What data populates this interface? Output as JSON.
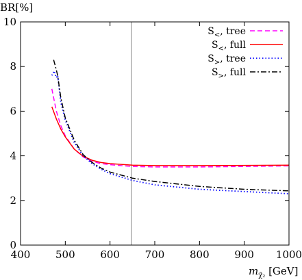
{
  "chart_data": {
    "type": "line",
    "title": "",
    "ylabel": "BR[%]",
    "xlabel": {
      "prefix": "m",
      "subscript": "χ̃₂",
      "suffix": " [GeV]"
    },
    "xlim": [
      400,
      1000
    ],
    "ylim": [
      0,
      10
    ],
    "xticks": [
      400,
      500,
      600,
      700,
      800,
      900,
      1000
    ],
    "yticks": [
      0,
      2,
      4,
      6,
      8,
      10
    ],
    "grid": false,
    "legend_position": "top-right",
    "reference_line": {
      "orientation": "vertical",
      "x": 648,
      "color": "#999999"
    },
    "series": [
      {
        "name": "S<, tree",
        "legend_main": "S",
        "legend_sub": "<",
        "legend_rest": ", tree",
        "color": "#ff00ff",
        "dash": "7,4",
        "x": [
          470,
          480,
          490,
          500,
          520,
          540,
          560,
          580,
          600,
          650,
          700,
          800,
          900,
          1000
        ],
        "y": [
          7.0,
          6.0,
          5.35,
          4.9,
          4.3,
          3.95,
          3.75,
          3.65,
          3.6,
          3.52,
          3.5,
          3.5,
          3.52,
          3.55
        ]
      },
      {
        "name": "S<, full",
        "legend_main": "S",
        "legend_sub": "<",
        "legend_rest": ", full",
        "color": "#ff0000",
        "dash": "",
        "x": [
          470,
          480,
          490,
          500,
          520,
          540,
          560,
          580,
          600,
          650,
          700,
          800,
          900,
          1000
        ],
        "y": [
          6.2,
          5.65,
          5.2,
          4.85,
          4.3,
          3.98,
          3.8,
          3.7,
          3.65,
          3.58,
          3.56,
          3.56,
          3.57,
          3.58
        ]
      },
      {
        "name": "S>, tree",
        "legend_main": "S",
        "legend_sub": ">",
        "legend_rest": ", tree",
        "color": "#0000ff",
        "dash": "1.5,3",
        "x": [
          470,
          475,
          480,
          483,
          490,
          500,
          520,
          540,
          560,
          580,
          600,
          650,
          700,
          800,
          900,
          1000
        ],
        "y": [
          7.6,
          7.8,
          7.5,
          7.6,
          6.4,
          5.6,
          4.6,
          4.0,
          3.65,
          3.4,
          3.2,
          2.9,
          2.7,
          2.5,
          2.4,
          2.3
        ]
      },
      {
        "name": "S>, full",
        "legend_main": "S",
        "legend_sub": ">",
        "legend_rest": ", full",
        "color": "#000000",
        "dash": "8,3,2,3",
        "x": [
          474,
          478,
          483,
          490,
          500,
          520,
          540,
          560,
          580,
          600,
          650,
          700,
          800,
          900,
          1000
        ],
        "y": [
          8.3,
          8.0,
          7.6,
          6.6,
          5.7,
          4.7,
          4.05,
          3.7,
          3.45,
          3.27,
          3.0,
          2.85,
          2.63,
          2.5,
          2.43
        ]
      }
    ]
  }
}
